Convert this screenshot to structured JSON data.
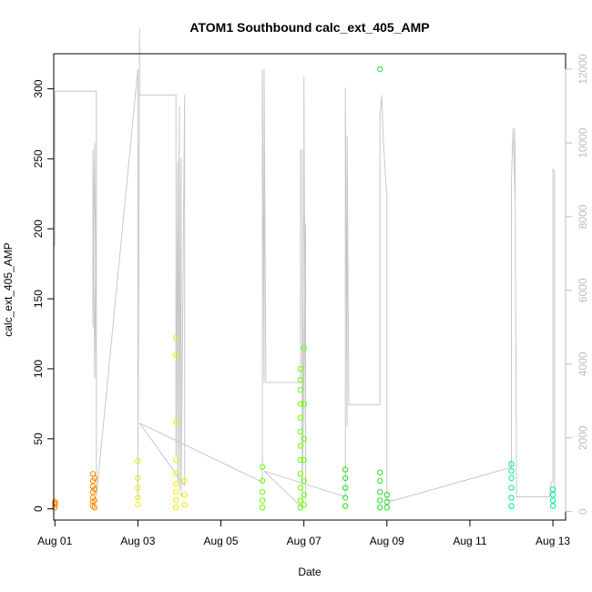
{
  "chart_data": {
    "type": "scatter",
    "title": "ATOM1 Southbound calc_ext_405_AMP",
    "xlabel": "Date",
    "ylabel": "calc_ext_405_AMP",
    "xlim": [
      "2023-07-31T23:20",
      "2023-08-13T07:20"
    ],
    "ylim": [
      -8,
      325
    ],
    "y2lim": [
      -230,
      12420
    ],
    "x_ticks": [
      "Aug 01",
      "Aug 03",
      "Aug 05",
      "Aug 07",
      "Aug 09",
      "Aug 11",
      "Aug 13"
    ],
    "x_tick_dates": [
      "2023-08-01",
      "2023-08-03",
      "2023-08-05",
      "2023-08-07",
      "2023-08-09",
      "2023-08-11",
      "2023-08-13"
    ],
    "y_ticks": [
      0,
      50,
      100,
      150,
      200,
      250,
      300
    ],
    "y2_ticks": [
      0,
      2000,
      4000,
      6000,
      8000,
      10000,
      12000
    ],
    "grid": false,
    "point_series": [
      {
        "color": "#ff8c00",
        "marker": "open-circle",
        "points": [
          [
            "2023-08-01T00:00",
            5
          ],
          [
            "2023-08-01T00:00",
            3
          ],
          [
            "2023-08-01T00:00",
            1
          ],
          [
            "2023-08-01T00:00",
            4
          ],
          [
            "2023-08-01T22:00",
            25
          ],
          [
            "2023-08-01T22:00",
            20
          ],
          [
            "2023-08-01T22:00",
            16
          ],
          [
            "2023-08-01T22:00",
            12
          ],
          [
            "2023-08-01T22:00",
            8
          ],
          [
            "2023-08-01T22:00",
            5
          ],
          [
            "2023-08-01T22:00",
            2
          ],
          [
            "2023-08-01T23:00",
            22
          ],
          [
            "2023-08-01T23:00",
            14
          ],
          [
            "2023-08-01T23:00",
            6
          ],
          [
            "2023-08-01T23:00",
            1
          ]
        ]
      },
      {
        "color": "#eeee00",
        "marker": "open-circle",
        "points": [
          [
            "2023-08-03T00:00",
            34
          ],
          [
            "2023-08-03T00:00",
            22
          ],
          [
            "2023-08-03T00:00",
            15
          ],
          [
            "2023-08-03T00:00",
            8
          ],
          [
            "2023-08-03T00:00",
            3
          ],
          [
            "2023-08-03T22:00",
            122
          ],
          [
            "2023-08-03T22:00",
            110
          ],
          [
            "2023-08-03T22:00",
            62
          ],
          [
            "2023-08-03T22:00",
            35
          ],
          [
            "2023-08-03T22:00",
            25
          ],
          [
            "2023-08-03T22:00",
            18
          ],
          [
            "2023-08-03T22:00",
            12
          ],
          [
            "2023-08-03T22:00",
            6
          ],
          [
            "2023-08-03T22:00",
            1
          ],
          [
            "2023-08-04T03:00",
            20
          ],
          [
            "2023-08-04T03:00",
            10
          ],
          [
            "2023-08-04T03:00",
            3
          ]
        ]
      },
      {
        "color": "#66ff00",
        "marker": "open-circle",
        "points": [
          [
            "2023-08-06T00:00",
            30
          ],
          [
            "2023-08-06T00:00",
            20
          ],
          [
            "2023-08-06T00:00",
            12
          ],
          [
            "2023-08-06T00:00",
            6
          ],
          [
            "2023-08-06T00:00",
            1
          ],
          [
            "2023-08-06T22:00",
            100
          ],
          [
            "2023-08-06T22:00",
            92
          ],
          [
            "2023-08-06T22:00",
            85
          ],
          [
            "2023-08-06T22:00",
            75
          ],
          [
            "2023-08-06T22:00",
            65
          ],
          [
            "2023-08-06T22:00",
            55
          ],
          [
            "2023-08-06T22:00",
            45
          ],
          [
            "2023-08-06T22:00",
            35
          ],
          [
            "2023-08-06T22:00",
            25
          ],
          [
            "2023-08-06T22:00",
            15
          ],
          [
            "2023-08-06T22:00",
            6
          ],
          [
            "2023-08-06T22:00",
            1
          ],
          [
            "2023-08-07T00:00",
            115
          ],
          [
            "2023-08-07T00:00",
            75
          ],
          [
            "2023-08-07T00:00",
            50
          ],
          [
            "2023-08-07T00:00",
            35
          ],
          [
            "2023-08-07T00:00",
            20
          ],
          [
            "2023-08-07T00:00",
            10
          ],
          [
            "2023-08-07T00:00",
            3
          ]
        ]
      },
      {
        "color": "#22e022",
        "marker": "open-circle",
        "points": [
          [
            "2023-08-08T00:00",
            28
          ],
          [
            "2023-08-08T00:00",
            22
          ],
          [
            "2023-08-08T00:00",
            15
          ],
          [
            "2023-08-08T00:00",
            8
          ],
          [
            "2023-08-08T00:00",
            2
          ],
          [
            "2023-08-08T20:00",
            314
          ],
          [
            "2023-08-08T20:00",
            26
          ],
          [
            "2023-08-08T20:00",
            20
          ],
          [
            "2023-08-08T20:00",
            12
          ],
          [
            "2023-08-08T20:00",
            6
          ],
          [
            "2023-08-08T20:00",
            1
          ],
          [
            "2023-08-09T00:00",
            10
          ],
          [
            "2023-08-09T00:00",
            5
          ],
          [
            "2023-08-09T00:00",
            1
          ]
        ]
      },
      {
        "color": "#00e8a0",
        "marker": "open-circle",
        "points": [
          [
            "2023-08-12T00:00",
            27
          ],
          [
            "2023-08-12T00:00",
            32
          ],
          [
            "2023-08-12T00:00",
            22
          ],
          [
            "2023-08-12T00:00",
            15
          ],
          [
            "2023-08-12T00:00",
            8
          ],
          [
            "2023-08-12T00:00",
            2
          ],
          [
            "2023-08-13T00:00",
            14
          ],
          [
            "2023-08-13T00:00",
            10
          ],
          [
            "2023-08-13T00:00",
            6
          ],
          [
            "2023-08-13T00:00",
            2
          ]
        ]
      }
    ],
    "line_series": {
      "color": "#c8c8c8",
      "axis": "right",
      "points": [
        [
          "2023-08-01T00:00",
          7200
        ],
        [
          "2023-08-01T00:00",
          11400
        ],
        [
          "2023-08-02T00:00",
          11400
        ],
        [
          "2023-08-02T00:00",
          3500
        ],
        [
          "2023-08-01T23:00",
          10000
        ],
        [
          "2023-08-01T22:00",
          5000
        ],
        [
          "2023-08-01T22:00",
          9800
        ],
        [
          "2023-08-01T23:00",
          3600
        ],
        [
          "2023-08-02T00:00",
          9000
        ],
        [
          "2023-08-02T00:00",
          400
        ],
        [
          "2023-08-03T00:00",
          12000
        ],
        [
          "2023-08-03T00:00",
          300
        ],
        [
          "2023-08-03T01:00",
          13100
        ],
        [
          "2023-08-03T01:00",
          11300
        ],
        [
          "2023-08-03T22:00",
          11300
        ],
        [
          "2023-08-03T22:00",
          1500
        ],
        [
          "2023-08-03T23:00",
          9500
        ],
        [
          "2023-08-03T23:00",
          800
        ],
        [
          "2023-08-04T00:00",
          11000
        ],
        [
          "2023-08-04T00:00",
          600
        ],
        [
          "2023-08-04T01:00",
          9600
        ],
        [
          "2023-08-04T01:00",
          400
        ],
        [
          "2023-08-04T03:00",
          11300
        ],
        [
          "2023-08-04T03:00",
          700
        ],
        [
          "2023-08-03T01:00",
          2400
        ],
        [
          "2023-08-06T00:00",
          800
        ],
        [
          "2023-08-06T00:00",
          12000
        ],
        [
          "2023-08-06T01:00",
          3500
        ],
        [
          "2023-08-06T01:00",
          12000
        ],
        [
          "2023-08-06T02:00",
          3500
        ],
        [
          "2023-08-06T22:00",
          3500
        ],
        [
          "2023-08-06T22:00",
          9800
        ],
        [
          "2023-08-06T23:00",
          9800
        ],
        [
          "2023-08-06T23:00",
          500
        ],
        [
          "2023-08-07T00:00",
          9500
        ],
        [
          "2023-08-07T00:00",
          11800
        ],
        [
          "2023-08-07T01:00",
          300
        ],
        [
          "2023-08-07T01:00",
          7800
        ],
        [
          "2023-08-06T23:00",
          100
        ],
        [
          "2023-08-06T01:00",
          1100
        ],
        [
          "2023-08-08T00:00",
          400
        ],
        [
          "2023-08-08T00:00",
          11500
        ],
        [
          "2023-08-08T01:00",
          2300
        ],
        [
          "2023-08-08T01:00",
          10200
        ],
        [
          "2023-08-08T02:00",
          2900
        ],
        [
          "2023-08-08T20:00",
          2900
        ],
        [
          "2023-08-08T20:00",
          10800
        ],
        [
          "2023-08-08T21:00",
          11300
        ],
        [
          "2023-08-08T22:00",
          10000
        ],
        [
          "2023-08-09T00:00",
          8500
        ],
        [
          "2023-08-09T00:00",
          300
        ],
        [
          "2023-08-09T04:00",
          300
        ],
        [
          "2023-08-12T00:00",
          1200
        ],
        [
          "2023-08-12T00:00",
          9000
        ],
        [
          "2023-08-12T01:00",
          10400
        ],
        [
          "2023-08-12T02:00",
          8600
        ],
        [
          "2023-08-12T02:00",
          10400
        ],
        [
          "2023-08-12T03:00",
          400
        ],
        [
          "2023-08-12T22:00",
          400
        ],
        [
          "2023-08-12T23:00",
          800
        ],
        [
          "2023-08-13T00:00",
          800
        ],
        [
          "2023-08-13T00:00",
          9300
        ],
        [
          "2023-08-13T01:00",
          9200
        ],
        [
          "2023-08-13T01:00",
          500
        ]
      ]
    }
  }
}
